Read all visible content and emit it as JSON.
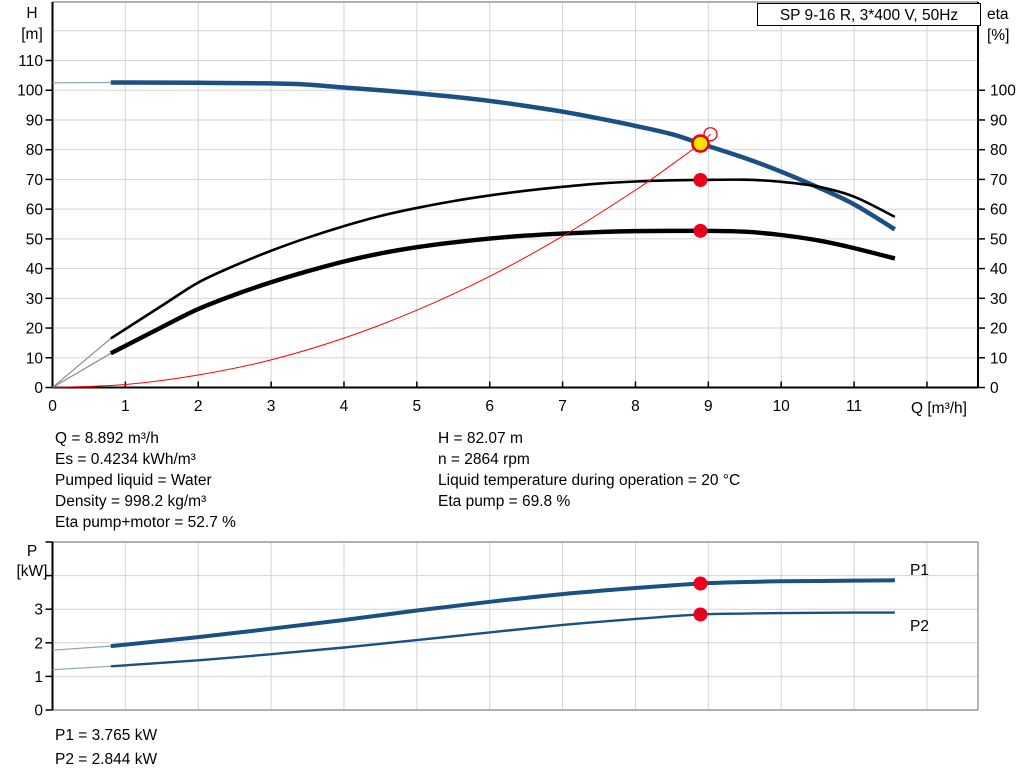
{
  "header": {
    "model": "SP 9-16 R, 3*400 V, 50Hz"
  },
  "axes": {
    "h_line1": "H",
    "h_line2": "[m]",
    "eta_line1": "eta",
    "eta_line2": "[%]",
    "p_line1": "P",
    "p_line2": "[kW]",
    "q_label": "Q [m³/h]"
  },
  "colors": {
    "curve_blue": "#1A5083",
    "label_blue": "#2060A0",
    "marker_red": "#E8001C",
    "system_red": "#FF0000",
    "duty_yellow": "#FFE400",
    "grid": "#D4D4D4",
    "frame": "#969696",
    "axis": "#000000",
    "lead_gray": "#8C8C8C",
    "lead_blue": "#8BA3B8",
    "black": "#000000"
  },
  "annotations": {
    "left": [
      "Q = 8.892 m³/h",
      "Es = 0.4234 kWh/m³",
      "Pumped liquid = Water",
      "Density = 998.2 kg/m³",
      "Eta pump+motor = 52.7 %"
    ],
    "right": [
      "H = 82.07 m",
      "n = 2864 rpm",
      "Liquid temperature during operation = 20 °C",
      "Eta pump = 69.8 %"
    ],
    "power": [
      "P1 = 3.765 kW",
      "P2 = 2.844 kW"
    ]
  },
  "chart_data": [
    {
      "type": "line",
      "title": "SP 9-16 R, 3*400 V, 50Hz",
      "xlabel": "Q [m³/h]",
      "ylabel": "H [m]",
      "y2label": "eta [%]",
      "xlim": [
        0,
        12.7
      ],
      "ylim": [
        0,
        129
      ],
      "y2lim": [
        0,
        129
      ],
      "grid": true,
      "xticks": [
        0,
        1,
        2,
        3,
        4,
        5,
        6,
        7,
        8,
        9,
        10,
        11
      ],
      "x_gridlines": [
        1,
        2,
        3,
        4,
        5,
        6,
        7,
        8,
        9,
        10,
        11,
        12
      ],
      "yticks": [
        0,
        10,
        20,
        30,
        40,
        50,
        60,
        70,
        80,
        90,
        100,
        110
      ],
      "y_gridlines": [
        10,
        20,
        30,
        40,
        50,
        60,
        70,
        80,
        90,
        100,
        110,
        120
      ],
      "y2ticks": [
        0,
        10,
        20,
        30,
        40,
        50,
        60,
        70,
        80,
        90,
        100
      ],
      "series": [
        {
          "name": "pump-head-curve",
          "color_key": "curve_blue",
          "width": 4.5,
          "lead_color_key": "lead_blue",
          "lead": [
            [
              0,
              102.5
            ],
            [
              0.8,
              102.6
            ]
          ],
          "points": [
            [
              0.8,
              102.6
            ],
            [
              2,
              102.5
            ],
            [
              3,
              102.3
            ],
            [
              3.5,
              101.9
            ],
            [
              4,
              100.9
            ],
            [
              4.5,
              100.0
            ],
            [
              5,
              99.0
            ],
            [
              5.5,
              97.8
            ],
            [
              6,
              96.4
            ],
            [
              6.5,
              94.7
            ],
            [
              7,
              92.8
            ],
            [
              7.5,
              90.5
            ],
            [
              8,
              88.0
            ],
            [
              8.5,
              85.2
            ],
            [
              8.892,
              82.07
            ],
            [
              9.5,
              77.2
            ],
            [
              10,
              72.6
            ],
            [
              10.5,
              67.4
            ],
            [
              11,
              61.6
            ],
            [
              11.56,
              53.2
            ]
          ]
        },
        {
          "name": "eta-pump-curve",
          "color_key": "black",
          "width": 2.6,
          "lead_color_key": "lead_gray",
          "lead": [
            [
              0,
              0
            ],
            [
              0.8,
              16.5
            ]
          ],
          "points": [
            [
              0.8,
              16.5
            ],
            [
              1.5,
              27.5
            ],
            [
              2,
              35.3
            ],
            [
              2.5,
              41.0
            ],
            [
              3,
              46.0
            ],
            [
              3.5,
              50.4
            ],
            [
              4,
              54.3
            ],
            [
              4.5,
              57.7
            ],
            [
              5,
              60.4
            ],
            [
              5.5,
              62.7
            ],
            [
              6,
              64.6
            ],
            [
              6.5,
              66.2
            ],
            [
              7,
              67.5
            ],
            [
              7.5,
              68.6
            ],
            [
              8,
              69.3
            ],
            [
              8.5,
              69.7
            ],
            [
              8.892,
              69.8
            ],
            [
              9.5,
              69.9
            ],
            [
              10,
              69.2
            ],
            [
              10.5,
              67.6
            ],
            [
              11,
              64.2
            ],
            [
              11.56,
              57.4
            ]
          ]
        },
        {
          "name": "eta-pump-motor-curve",
          "color_key": "black",
          "width": 4.4,
          "lead_color_key": "lead_gray",
          "lead": [
            [
              0,
              0
            ],
            [
              0.8,
              11.5
            ]
          ],
          "points": [
            [
              0.8,
              11.5
            ],
            [
              1.5,
              20.3
            ],
            [
              2,
              26.4
            ],
            [
              2.5,
              31.2
            ],
            [
              3,
              35.4
            ],
            [
              3.5,
              39.1
            ],
            [
              4,
              42.4
            ],
            [
              4.5,
              45.1
            ],
            [
              5,
              47.2
            ],
            [
              5.5,
              48.8
            ],
            [
              6,
              50.1
            ],
            [
              6.5,
              51.1
            ],
            [
              7,
              51.8
            ],
            [
              7.5,
              52.3
            ],
            [
              8,
              52.6
            ],
            [
              8.892,
              52.7
            ],
            [
              9.5,
              52.4
            ],
            [
              10,
              51.3
            ],
            [
              10.5,
              49.5
            ],
            [
              11,
              46.9
            ],
            [
              11.56,
              43.4
            ]
          ]
        },
        {
          "name": "system-curve",
          "color_key": "system_red",
          "width": 1,
          "points": [
            [
              0,
              0
            ],
            [
              1,
              1.0
            ],
            [
              2,
              4.2
            ],
            [
              3,
              9.3
            ],
            [
              4,
              16.6
            ],
            [
              5,
              26.0
            ],
            [
              6,
              37.4
            ],
            [
              7,
              50.9
            ],
            [
              8,
              66.4
            ],
            [
              8.5,
              75.0
            ],
            [
              8.892,
              82.07
            ],
            [
              9.03,
              85.2
            ]
          ]
        }
      ],
      "markers": [
        {
          "kind": "open-circle",
          "name": "requested-duty-circle",
          "q": 9.03,
          "v": 85.2
        },
        {
          "kind": "yellow-dot",
          "name": "duty-point-marker",
          "q": 8.892,
          "v": 82.07
        },
        {
          "kind": "red-dot",
          "name": "eta-pump-operating-dot",
          "q": 8.892,
          "v": 69.8
        },
        {
          "kind": "red-dot",
          "name": "eta-pump-motor-operating-dot",
          "q": 8.892,
          "v": 52.7
        }
      ]
    },
    {
      "type": "line",
      "xlabel": "Q [m³/h]",
      "ylabel": "P [kW]",
      "xlim": [
        0,
        12.7
      ],
      "ylim": [
        0,
        5.06
      ],
      "grid": true,
      "x_gridlines": [
        1,
        2,
        3,
        4,
        5,
        6,
        7,
        8,
        9,
        10,
        11,
        12
      ],
      "yticks": [
        0,
        1,
        2,
        3
      ],
      "y_gridlines": [
        1,
        2,
        3,
        4
      ],
      "y_extra_ticks": [
        4,
        5
      ],
      "series": [
        {
          "name": "P1",
          "color_key": "curve_blue",
          "width": 4,
          "lead_color_key": "lead_blue",
          "lead": [
            [
              0,
              1.78
            ],
            [
              0.8,
              1.9
            ]
          ],
          "points": [
            [
              0.8,
              1.9
            ],
            [
              2,
              2.17
            ],
            [
              3,
              2.42
            ],
            [
              4,
              2.68
            ],
            [
              5,
              2.96
            ],
            [
              6,
              3.22
            ],
            [
              7,
              3.45
            ],
            [
              8,
              3.63
            ],
            [
              8.892,
              3.765
            ],
            [
              9.5,
              3.81
            ],
            [
              10,
              3.83
            ],
            [
              11,
              3.85
            ],
            [
              11.56,
              3.86
            ]
          ]
        },
        {
          "name": "P2",
          "color_key": "curve_blue",
          "width": 2.4,
          "lead_color_key": "lead_blue",
          "lead": [
            [
              0,
              1.2
            ],
            [
              0.8,
              1.3
            ]
          ],
          "points": [
            [
              0.8,
              1.3
            ],
            [
              2,
              1.48
            ],
            [
              3,
              1.66
            ],
            [
              4,
              1.86
            ],
            [
              5,
              2.08
            ],
            [
              6,
              2.31
            ],
            [
              7,
              2.53
            ],
            [
              8,
              2.71
            ],
            [
              8.892,
              2.844
            ],
            [
              9.5,
              2.87
            ],
            [
              10,
              2.885
            ],
            [
              11,
              2.9
            ],
            [
              11.56,
              2.9
            ]
          ]
        }
      ],
      "markers": [
        {
          "kind": "red-dot",
          "name": "p1-operating-dot",
          "q": 8.892,
          "v": 3.765
        },
        {
          "kind": "red-dot",
          "name": "p2-operating-dot",
          "q": 8.892,
          "v": 2.844
        }
      ]
    }
  ]
}
